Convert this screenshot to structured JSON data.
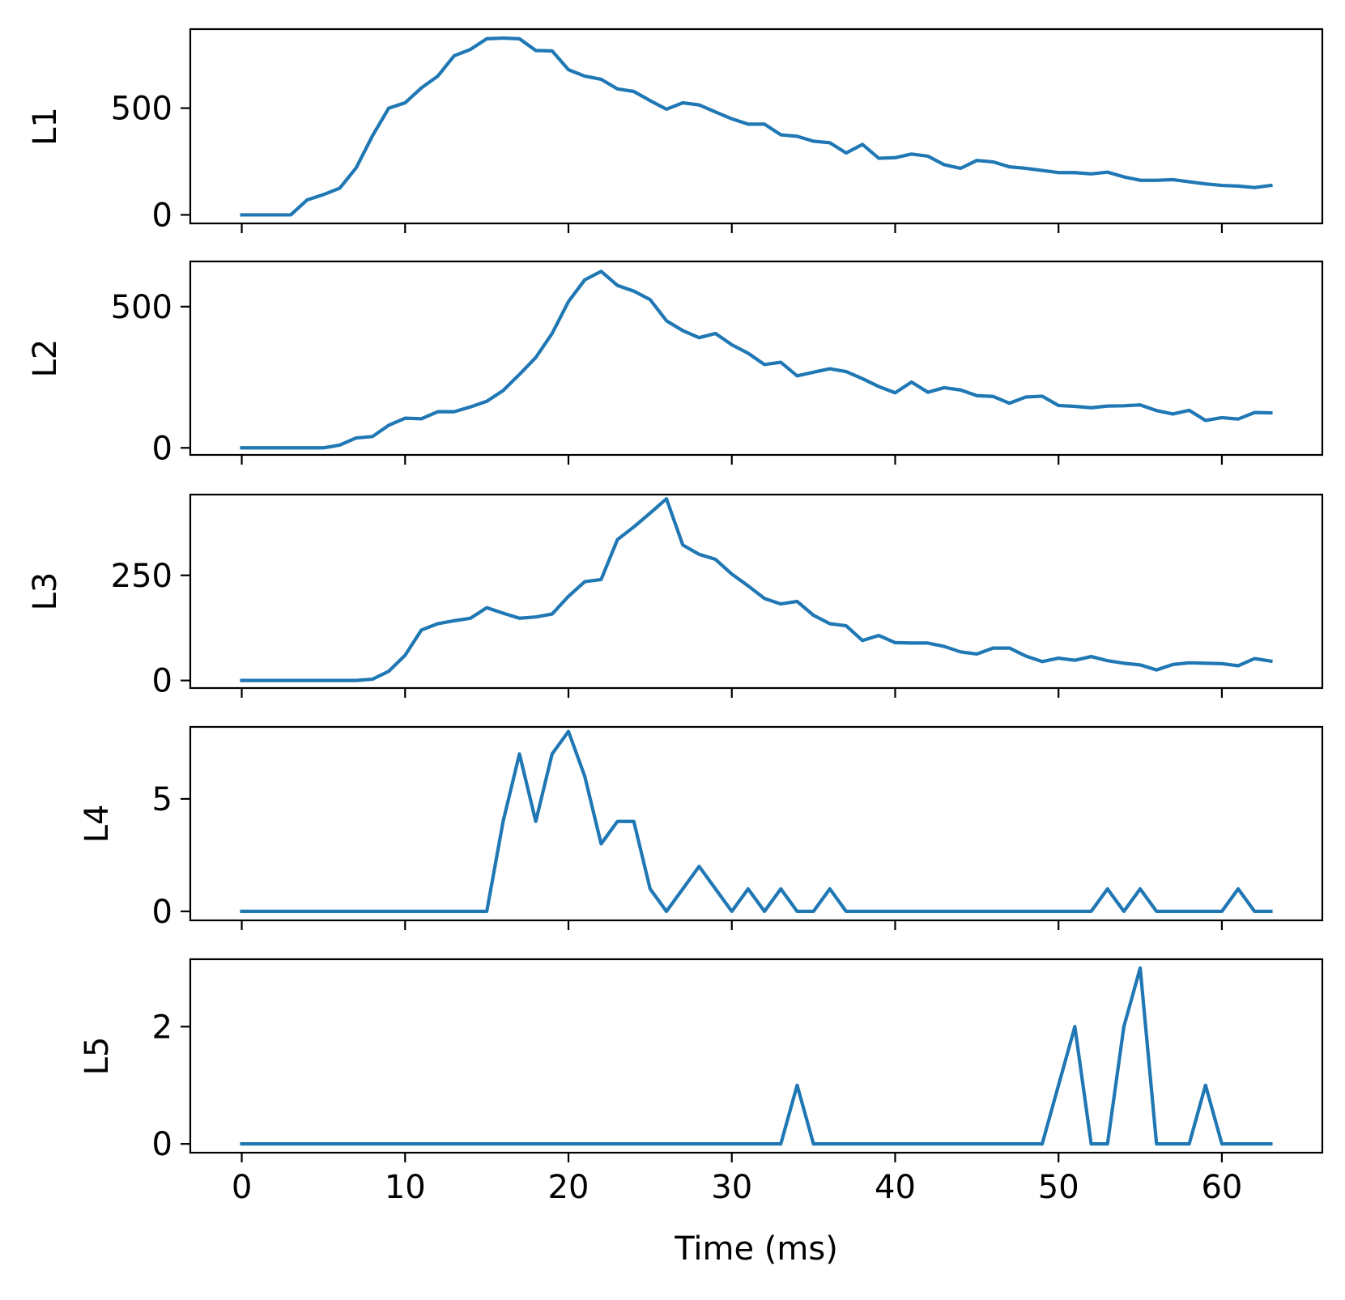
{
  "chart_data": {
    "type": "line",
    "layout": "stacked-subplots",
    "shared_x": true,
    "xlabel": "Time (ms)",
    "xlim": [
      -3.15,
      66.15
    ],
    "xticks": [
      0,
      10,
      20,
      30,
      40,
      50,
      60
    ],
    "x": [
      0,
      1,
      2,
      3,
      4,
      5,
      6,
      7,
      8,
      9,
      10,
      11,
      12,
      13,
      14,
      15,
      16,
      17,
      18,
      19,
      20,
      21,
      22,
      23,
      24,
      25,
      26,
      27,
      28,
      29,
      30,
      31,
      32,
      33,
      34,
      35,
      36,
      37,
      38,
      39,
      40,
      41,
      42,
      43,
      44,
      45,
      46,
      47,
      48,
      49,
      50,
      51,
      52,
      53,
      54,
      55,
      56,
      57,
      58,
      59,
      60,
      61,
      62,
      63
    ],
    "line_color": "#1f77b4",
    "panels": [
      {
        "ylabel": "L1",
        "ylim": [
          -40,
          870
        ],
        "yticks": [
          0,
          500
        ],
        "values": [
          0,
          0,
          0,
          0,
          70,
          95,
          125,
          220,
          370,
          500,
          525,
          595,
          650,
          745,
          775,
          825,
          828,
          825,
          770,
          768,
          680,
          650,
          635,
          590,
          578,
          535,
          495,
          525,
          515,
          482,
          450,
          425,
          425,
          375,
          368,
          345,
          338,
          290,
          330,
          265,
          268,
          285,
          275,
          235,
          218,
          255,
          248,
          225,
          218,
          208,
          198,
          198,
          192,
          200,
          178,
          162,
          162,
          165,
          155,
          145,
          138,
          135,
          128,
          138
        ]
      },
      {
        "ylabel": "L2",
        "ylim": [
          -25,
          660
        ],
        "yticks": [
          0,
          500
        ],
        "values": [
          0,
          0,
          0,
          0,
          0,
          0,
          10,
          35,
          40,
          80,
          105,
          103,
          128,
          128,
          145,
          165,
          203,
          260,
          320,
          405,
          518,
          595,
          625,
          575,
          555,
          525,
          450,
          415,
          390,
          405,
          365,
          335,
          295,
          303,
          255,
          268,
          280,
          270,
          245,
          217,
          195,
          233,
          197,
          213,
          205,
          185,
          182,
          158,
          180,
          183,
          150,
          147,
          142,
          148,
          149,
          152,
          132,
          120,
          133,
          97,
          107,
          102,
          125,
          124
        ]
      },
      {
        "ylabel": "L3",
        "ylim": [
          -18,
          442
        ],
        "yticks": [
          0,
          250
        ],
        "values": [
          0,
          0,
          0,
          0,
          0,
          0,
          0,
          0,
          3,
          22,
          60,
          120,
          135,
          142,
          148,
          173,
          160,
          148,
          151,
          158,
          200,
          235,
          240,
          335,
          365,
          398,
          432,
          322,
          300,
          288,
          253,
          225,
          195,
          182,
          188,
          155,
          135,
          130,
          95,
          107,
          90,
          89,
          89,
          81,
          68,
          63,
          77,
          77,
          58,
          45,
          53,
          48,
          57,
          47,
          41,
          37,
          25,
          38,
          42,
          41,
          40,
          35,
          52,
          46
        ]
      },
      {
        "ylabel": "L4",
        "ylim": [
          -0.4,
          8.2
        ],
        "yticks": [
          0,
          5
        ],
        "values": [
          0,
          0,
          0,
          0,
          0,
          0,
          0,
          0,
          0,
          0,
          0,
          0,
          0,
          0,
          0,
          0,
          4,
          7,
          4,
          7,
          8,
          6,
          3,
          4,
          4,
          1,
          0,
          1,
          2,
          1,
          0,
          1,
          0,
          1,
          0,
          0,
          1,
          0,
          0,
          0,
          0,
          0,
          0,
          0,
          0,
          0,
          0,
          0,
          0,
          0,
          0,
          0,
          0,
          1,
          0,
          1,
          0,
          0,
          0,
          0,
          0,
          1,
          0,
          0
        ]
      },
      {
        "ylabel": "L5",
        "ylim": [
          -0.15,
          3.15
        ],
        "yticks": [
          0,
          2
        ],
        "values": [
          0,
          0,
          0,
          0,
          0,
          0,
          0,
          0,
          0,
          0,
          0,
          0,
          0,
          0,
          0,
          0,
          0,
          0,
          0,
          0,
          0,
          0,
          0,
          0,
          0,
          0,
          0,
          0,
          0,
          0,
          0,
          0,
          0,
          0,
          1,
          0,
          0,
          0,
          0,
          0,
          0,
          0,
          0,
          0,
          0,
          0,
          0,
          0,
          0,
          0,
          1,
          2,
          0,
          0,
          2,
          3,
          0,
          0,
          0,
          1,
          0,
          0,
          0,
          0
        ]
      }
    ]
  }
}
